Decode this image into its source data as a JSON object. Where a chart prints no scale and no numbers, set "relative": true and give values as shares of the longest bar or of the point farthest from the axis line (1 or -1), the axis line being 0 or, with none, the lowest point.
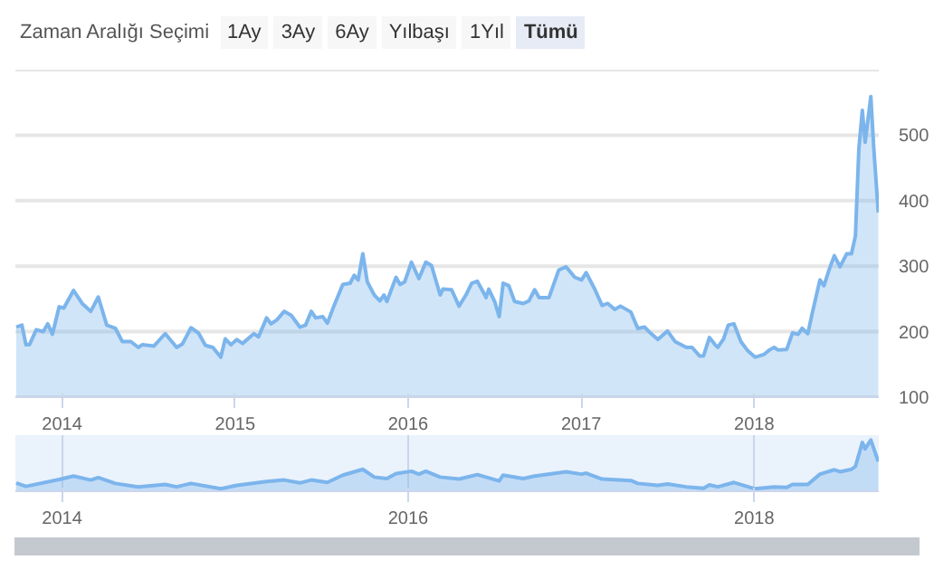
{
  "chart_data": [
    {
      "type": "area",
      "annotations": [
        "Zaman Aralığı Seçimi",
        "1Ay",
        "3Ay",
        "6Ay",
        "Yılbaşı",
        "1Yıl",
        "Tümü"
      ],
      "x": [
        2013.735,
        2013.768,
        2013.791,
        2013.811,
        2013.851,
        2013.891,
        2013.917,
        2013.944,
        2013.983,
        2014.01,
        2014.066,
        2014.116,
        2014.166,
        2014.209,
        2014.258,
        2014.308,
        2014.348,
        2014.397,
        2014.44,
        2014.463,
        2014.53,
        2014.596,
        2014.662,
        2014.695,
        2014.745,
        2014.788,
        2014.828,
        2014.871,
        2014.917,
        2014.943,
        2014.976,
        2015.01,
        2015.043,
        2015.109,
        2015.135,
        2015.182,
        2015.208,
        2015.241,
        2015.284,
        2015.324,
        2015.374,
        2015.407,
        2015.44,
        2015.466,
        2015.506,
        2015.533,
        2015.572,
        2015.622,
        2015.665,
        2015.688,
        2015.711,
        2015.738,
        2015.764,
        2015.804,
        2015.837,
        2015.86,
        2015.877,
        2015.93,
        2015.953,
        2015.98,
        2016.019,
        2016.062,
        2016.102,
        2016.135,
        2016.185,
        2016.201,
        2016.251,
        2016.294,
        2016.334,
        2016.367,
        2016.4,
        2016.433,
        2016.45,
        2016.466,
        2016.5,
        2016.526,
        2016.549,
        2016.582,
        2016.615,
        2016.665,
        2016.698,
        2016.731,
        2016.757,
        2016.814,
        2016.87,
        2016.913,
        2016.963,
        2017.002,
        2017.029,
        2017.078,
        2017.121,
        2017.154,
        2017.194,
        2017.227,
        2017.287,
        2017.327,
        2017.366,
        2017.4,
        2017.443,
        2017.499,
        2017.542,
        2017.608,
        2017.641,
        2017.684,
        2017.707,
        2017.741,
        2017.774,
        2017.79,
        2017.823,
        2017.85,
        2017.883,
        2017.923,
        2017.962,
        2018.005,
        2018.055,
        2018.088,
        2018.115,
        2018.138,
        2018.188,
        2018.221,
        2018.254,
        2018.277,
        2018.31,
        2018.337,
        2018.38,
        2018.403,
        2018.436,
        2018.463,
        2018.496,
        2018.535,
        2018.562,
        2018.585,
        2018.605,
        2018.625,
        2018.641,
        2018.658,
        2018.674,
        2018.691,
        2018.717
      ],
      "values": [
        207,
        210,
        180,
        180,
        203,
        200,
        212,
        196,
        238,
        236,
        263,
        243,
        231,
        253,
        210,
        205,
        185,
        185,
        176,
        180,
        178,
        197,
        176,
        181,
        206,
        198,
        179,
        176,
        161,
        189,
        180,
        188,
        182,
        197,
        192,
        221,
        212,
        218,
        231,
        225,
        207,
        210,
        231,
        221,
        223,
        213,
        240,
        272,
        274,
        286,
        279,
        319,
        276,
        256,
        247,
        256,
        246,
        283,
        272,
        276,
        306,
        281,
        306,
        301,
        256,
        265,
        264,
        239,
        256,
        274,
        277,
        261,
        252,
        265,
        246,
        223,
        274,
        270,
        246,
        243,
        247,
        264,
        252,
        252,
        294,
        299,
        283,
        279,
        290,
        265,
        240,
        243,
        234,
        239,
        230,
        205,
        207,
        198,
        188,
        201,
        185,
        176,
        176,
        163,
        163,
        191,
        180,
        176,
        189,
        210,
        212,
        185,
        171,
        161,
        165,
        172,
        176,
        172,
        173,
        198,
        196,
        205,
        197,
        230,
        279,
        270,
        297,
        316,
        299,
        319,
        319,
        346,
        480,
        538,
        489,
        525,
        559,
        480,
        382
      ],
      "color": "#7cb5ec",
      "xlim": [
        2013.73,
        2018.72
      ],
      "ylim": [
        100,
        600
      ],
      "xticks": [
        2014,
        2015,
        2016,
        2017,
        2018
      ],
      "yticks": [
        100,
        200,
        300,
        400,
        500,
        {
          "value": 600,
          "label": null
        }
      ],
      "grid": "y"
    },
    {
      "type": "area",
      "relative": true,
      "tick_labels": "x",
      "grid": "x",
      "color": "#7cb5ec",
      "xlim": [
        2013.73,
        2018.72
      ],
      "xticks": [
        2014,
        2016,
        2018
      ],
      "x": [
        2013.735,
        2013.791,
        2013.983,
        2014.066,
        2014.166,
        2014.209,
        2014.308,
        2014.44,
        2014.596,
        2014.662,
        2014.745,
        2014.917,
        2015.01,
        2015.182,
        2015.284,
        2015.374,
        2015.44,
        2015.533,
        2015.622,
        2015.738,
        2015.804,
        2015.877,
        2015.93,
        2016.019,
        2016.062,
        2016.102,
        2016.185,
        2016.294,
        2016.4,
        2016.526,
        2016.549,
        2016.665,
        2016.731,
        2016.913,
        2017.002,
        2017.029,
        2017.121,
        2017.287,
        2017.327,
        2017.443,
        2017.499,
        2017.608,
        2017.707,
        2017.741,
        2017.79,
        2017.883,
        2018.005,
        2018.115,
        2018.188,
        2018.221,
        2018.31,
        2018.38,
        2018.463,
        2018.496,
        2018.562,
        2018.585,
        2018.625,
        2018.641,
        2018.674,
        2018.717
      ],
      "values": [
        0.12,
        0.05,
        0.19,
        0.26,
        0.18,
        0.23,
        0.11,
        0.04,
        0.09,
        0.04,
        0.11,
        0.0,
        0.07,
        0.15,
        0.18,
        0.12,
        0.18,
        0.13,
        0.28,
        0.4,
        0.24,
        0.21,
        0.31,
        0.36,
        0.3,
        0.36,
        0.24,
        0.2,
        0.29,
        0.16,
        0.28,
        0.21,
        0.26,
        0.35,
        0.3,
        0.32,
        0.2,
        0.17,
        0.11,
        0.07,
        0.1,
        0.04,
        0.01,
        0.08,
        0.04,
        0.13,
        0.0,
        0.04,
        0.03,
        0.09,
        0.09,
        0.3,
        0.39,
        0.35,
        0.4,
        0.46,
        0.95,
        0.82,
        1.0,
        0.56
      ]
    }
  ]
}
